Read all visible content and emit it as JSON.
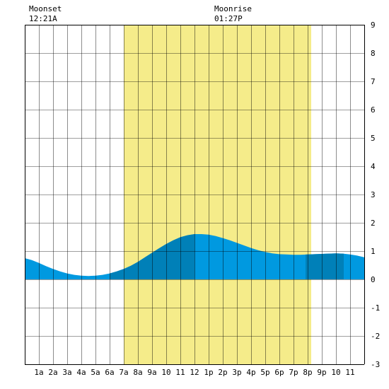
{
  "moon_events": [
    {
      "label": "Moonset",
      "time": "12:21A",
      "hour": 0.35
    },
    {
      "label": "Moonrise",
      "time": "01:27P",
      "hour": 13.45
    }
  ],
  "chart_data": {
    "type": "area",
    "title": "",
    "xlabel": "",
    "ylabel": "",
    "xlim": [
      -1,
      23
    ],
    "ylim": [
      -3,
      9
    ],
    "x_tick_labels": [
      "1a",
      "2a",
      "3a",
      "4a",
      "5a",
      "6a",
      "7a",
      "8a",
      "9a",
      "10",
      "11",
      "12",
      "1p",
      "2p",
      "3p",
      "4p",
      "5p",
      "6p",
      "7p",
      "8p",
      "9p",
      "10",
      "11"
    ],
    "y_tick_labels": [
      "-3",
      "-2",
      "-1",
      "0",
      "1",
      "2",
      "3",
      "4",
      "5",
      "6",
      "7",
      "8",
      "9"
    ],
    "grid": true,
    "daylight": {
      "start_hour": 6.0,
      "end_hour": 19.25
    },
    "series": [
      {
        "x": [
          -1.0,
          -0.5,
          0,
          0.5,
          1,
          1.5,
          2,
          2.5,
          3,
          3.5,
          4,
          4.5,
          5,
          5.5,
          6,
          6.5,
          7,
          7.5,
          8,
          8.5,
          9,
          9.5,
          10,
          10.5,
          11,
          11.5,
          12,
          12.5,
          13,
          13.5,
          14,
          14.5,
          15,
          15.5,
          16,
          16.5,
          17,
          17.5,
          18,
          18.5,
          19,
          19.5,
          20,
          20.5,
          21,
          21.5,
          22,
          22.5,
          23
        ],
        "y": [
          0.75,
          0.68,
          0.58,
          0.47,
          0.37,
          0.28,
          0.21,
          0.16,
          0.13,
          0.12,
          0.13,
          0.16,
          0.21,
          0.28,
          0.37,
          0.48,
          0.62,
          0.78,
          0.94,
          1.1,
          1.25,
          1.38,
          1.49,
          1.56,
          1.6,
          1.6,
          1.58,
          1.53,
          1.46,
          1.38,
          1.29,
          1.2,
          1.11,
          1.03,
          0.97,
          0.92,
          0.89,
          0.88,
          0.87,
          0.87,
          0.88,
          0.89,
          0.9,
          0.91,
          0.92,
          0.91,
          0.88,
          0.84,
          0.78
        ]
      }
    ],
    "dark_bands": [
      [
        5.0,
        11.0
      ],
      [
        18.85,
        21.55
      ]
    ],
    "colors": {
      "tide_light": "#0099e0",
      "tide_dark": "#0080b8",
      "daylight": "#f5ec8a",
      "grid": "#000000",
      "background": "#ffffff"
    }
  }
}
